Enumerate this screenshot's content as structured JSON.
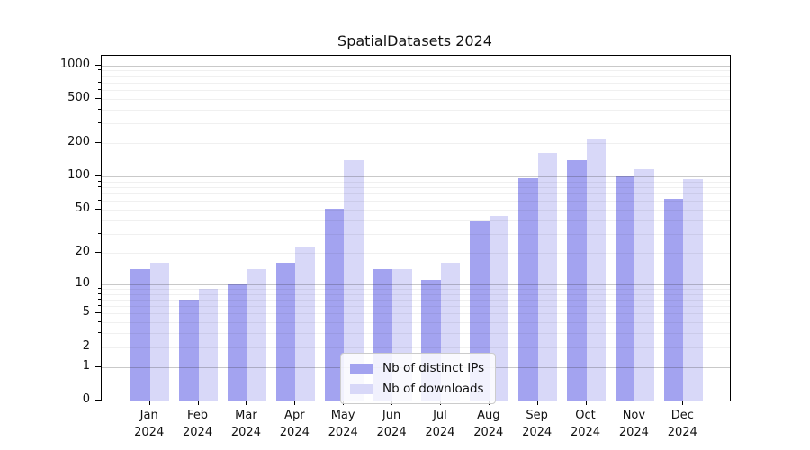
{
  "chart_data": {
    "type": "bar",
    "title": "SpatialDatasets 2024",
    "categories": [
      "Jan 2024",
      "Feb 2024",
      "Mar 2024",
      "Apr 2024",
      "May 2024",
      "Jun 2024",
      "Jul 2024",
      "Aug 2024",
      "Sep 2024",
      "Oct 2024",
      "Nov 2024",
      "Dec 2024"
    ],
    "series": [
      {
        "name": "Nb of distinct IPs",
        "color": "#a3a3f0",
        "values": [
          14,
          7,
          10,
          16,
          51,
          14,
          11,
          39,
          96,
          140,
          100,
          63
        ]
      },
      {
        "name": "Nb of downloads",
        "color": "#d8d8f8",
        "values": [
          16,
          9,
          14,
          23,
          140,
          14,
          16,
          44,
          165,
          220,
          116,
          95
        ]
      }
    ],
    "xlabel": "",
    "ylabel": "",
    "yscale": "log1p",
    "yticks": [
      0,
      1,
      2,
      5,
      10,
      20,
      50,
      100,
      200,
      500,
      1000
    ],
    "minor_gridlines": [
      2,
      3,
      4,
      5,
      6,
      7,
      8,
      9,
      20,
      30,
      40,
      50,
      60,
      70,
      80,
      90,
      200,
      300,
      400,
      500,
      600,
      700,
      800,
      900
    ],
    "major_gridlines": [
      1,
      10,
      100,
      1000
    ],
    "ylim": [
      0,
      1225
    ],
    "grid": "on",
    "legend_position": "lower center"
  }
}
